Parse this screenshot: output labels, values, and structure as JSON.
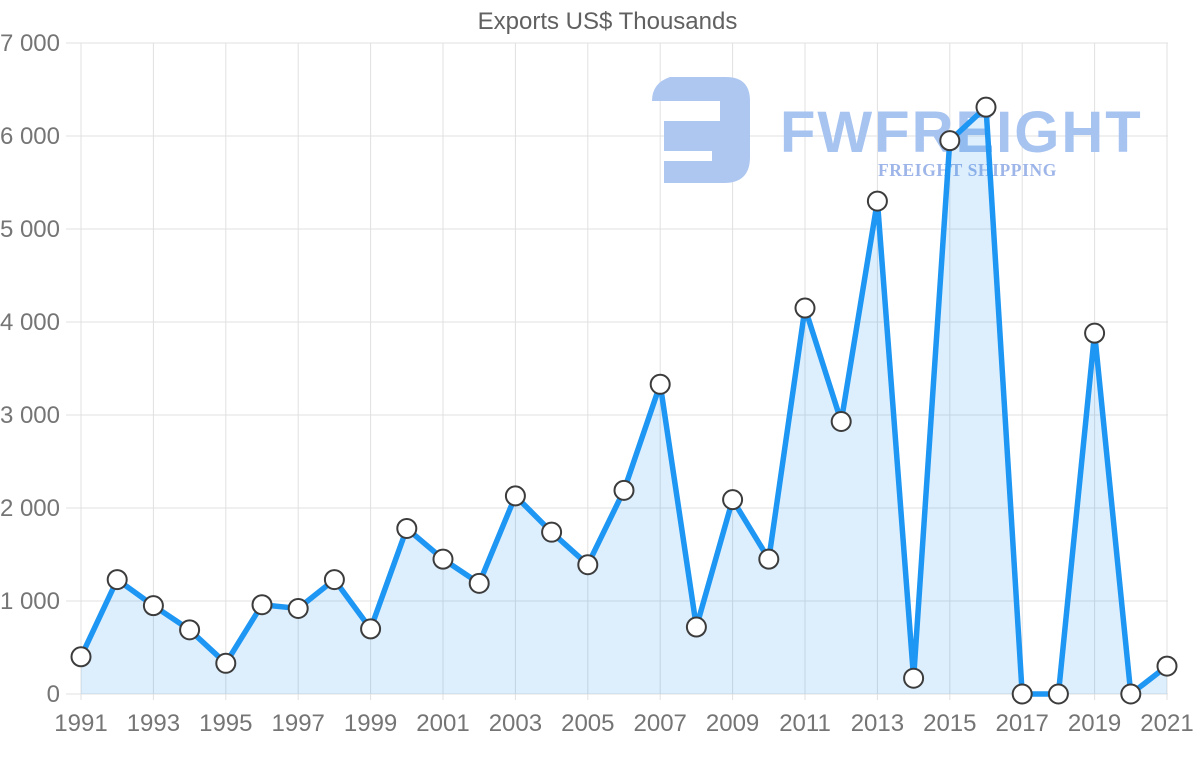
{
  "chart_data": {
    "type": "area",
    "title": "Exports US$ Thousands",
    "xlabel": "",
    "ylabel": "",
    "x": [
      1991,
      1992,
      1993,
      1994,
      1995,
      1996,
      1997,
      1998,
      1999,
      2000,
      2001,
      2002,
      2003,
      2004,
      2005,
      2006,
      2007,
      2008,
      2009,
      2010,
      2011,
      2012,
      2013,
      2014,
      2015,
      2016,
      2017,
      2018,
      2019,
      2020,
      2021
    ],
    "values": [
      400,
      1230,
      950,
      690,
      330,
      960,
      920,
      1230,
      700,
      1780,
      1450,
      1190,
      2130,
      1740,
      1390,
      2190,
      3330,
      720,
      2090,
      1450,
      4150,
      2930,
      5300,
      170,
      5950,
      6310,
      0,
      0,
      3880,
      0,
      300
    ],
    "series_name": "Exports",
    "ylim": [
      0,
      7000
    ],
    "y_ticks": [
      0,
      1000,
      2000,
      3000,
      4000,
      5000,
      6000,
      7000
    ],
    "y_tick_labels": [
      "0",
      "1 000",
      "2 000",
      "3 000",
      "4 000",
      "5 000",
      "6 000",
      "7 000"
    ],
    "x_tick_labels": [
      "1991",
      "1993",
      "1995",
      "1997",
      "1999",
      "2001",
      "2003",
      "2005",
      "2007",
      "2009",
      "2011",
      "2013",
      "2015",
      "2017",
      "2019",
      "2021"
    ],
    "grid": true,
    "legend_position": "none",
    "line_color": "#1e96f3",
    "area_color": "rgba(30,150,243,0.15)",
    "marker_fill": "#ffffff",
    "marker_stroke": "#3c3c3c",
    "grid_color": "#e0e0e0",
    "axis_label_color": "#757575",
    "title_color": "#616161"
  },
  "watermark": {
    "brand": "FWFREIGHT",
    "tagline": "FREIGHT SHIPPING",
    "logo_icon": "fwfreight-logo-icon",
    "brand_color": "#a7c3f0",
    "tagline_color": "#9db5e8",
    "logo_color": "#aec7f1"
  }
}
